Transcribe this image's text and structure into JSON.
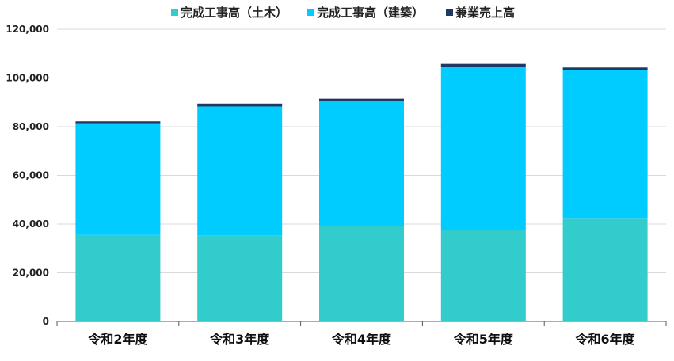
{
  "chart_data": {
    "type": "bar",
    "stacked": true,
    "title": "",
    "xlabel": "",
    "ylabel": "",
    "categories": [
      "令和2年度",
      "令和3年度",
      "令和4年度",
      "令和5年度",
      "令和6年度"
    ],
    "series": [
      {
        "name": "完成工事高（土木）",
        "color": "#33cccc",
        "values": [
          35500,
          35400,
          39300,
          37700,
          42200
        ]
      },
      {
        "name": "完成工事高（建築）",
        "color": "#00ccff",
        "values": [
          45900,
          52900,
          51200,
          66900,
          61200
        ]
      },
      {
        "name": "兼業売上高",
        "color": "#1f3864",
        "values": [
          800,
          1200,
          1000,
          1200,
          900
        ]
      }
    ],
    "ylim": [
      0,
      120000
    ],
    "yticks": [
      0,
      20000,
      40000,
      60000,
      80000,
      100000,
      120000
    ],
    "ytick_labels": [
      "0",
      "20,000",
      "40,000",
      "60,000",
      "80,000",
      "100,000",
      "120,000"
    ],
    "grid": true,
    "legend_position": "top"
  }
}
